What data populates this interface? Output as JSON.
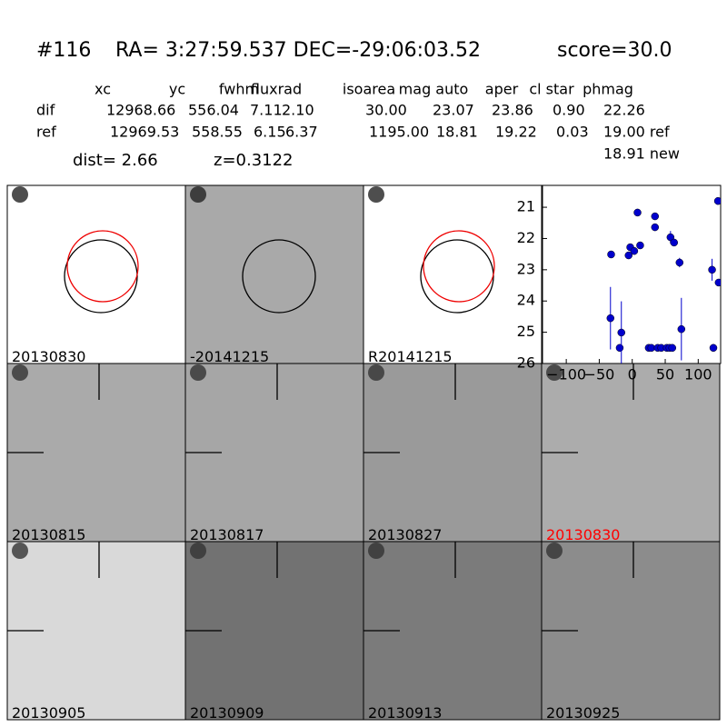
{
  "header": {
    "id": "#116",
    "coords": "RA= 3:27:59.537 DEC=-29:06:03.52",
    "score": "score=30.0"
  },
  "table": {
    "columns": [
      "xc",
      "yc",
      "fwhm",
      "fluxrad",
      "isoarea",
      "mag auto",
      "aper",
      "cl star",
      "phmag"
    ],
    "rows": [
      [
        "dif",
        "12968.66",
        "556.04",
        "7.11",
        "2.10",
        "30.00",
        "23.07",
        "23.86",
        "0.90",
        "22.26"
      ],
      [
        "ref",
        "12969.53",
        "558.55",
        "6.15",
        "6.37",
        "1195.00",
        "18.81",
        "19.22",
        "0.03",
        "19.00 ref"
      ]
    ],
    "extra": "18.91 new"
  },
  "dist": "dist=  2.66",
  "z": "z=0.3122",
  "panels": [
    {
      "label": "20130830"
    },
    {
      "label": "-20141215"
    },
    {
      "label": "R20141215"
    },
    {
      "label": "20130815"
    },
    {
      "label": "20130817"
    },
    {
      "label": "20130827"
    },
    {
      "label": "20130830",
      "color": "#ff0000"
    },
    {
      "label": "20130905"
    },
    {
      "label": "20130909"
    },
    {
      "label": "20130913"
    },
    {
      "label": "20130925"
    }
  ],
  "chart_data": {
    "type": "scatter",
    "color": "#0000cc",
    "x": [
      -32,
      -33,
      -19,
      -16.5,
      -5.5,
      -3,
      3,
      8,
      12,
      25,
      29,
      34.5,
      34.5,
      38.6,
      44,
      52.4,
      56.5,
      58,
      60.7,
      63.4,
      71.7,
      74.5,
      121,
      123,
      130,
      131
    ],
    "values": [
      22.51,
      24.55,
      25.5,
      25.01,
      22.54,
      22.28,
      22.4,
      21.17,
      22.22,
      25.5,
      25.5,
      21.29,
      21.64,
      25.5,
      25.5,
      25.5,
      25.5,
      21.96,
      25.5,
      22.13,
      22.77,
      24.9,
      23.0,
      25.5,
      20.8,
      23.41
    ],
    "errors": [
      0.1,
      1.0,
      0.1,
      1.0,
      0.06,
      0.06,
      0.06,
      0.05,
      0.06,
      0.05,
      0.05,
      0.05,
      0.05,
      0.05,
      0.05,
      0.05,
      0.05,
      0.2,
      0.05,
      0.08,
      0.15,
      1.0,
      0.35,
      0.1,
      0.05,
      0.1
    ],
    "xlim": [
      -136,
      134
    ],
    "xticks": [
      {
        "value": -100,
        "label": "−100"
      },
      {
        "value": -50,
        "label": "−50"
      },
      0,
      50,
      100
    ],
    "ylim": [
      26,
      20.3
    ],
    "yticks": [
      21,
      22,
      23,
      24,
      25,
      26
    ]
  }
}
